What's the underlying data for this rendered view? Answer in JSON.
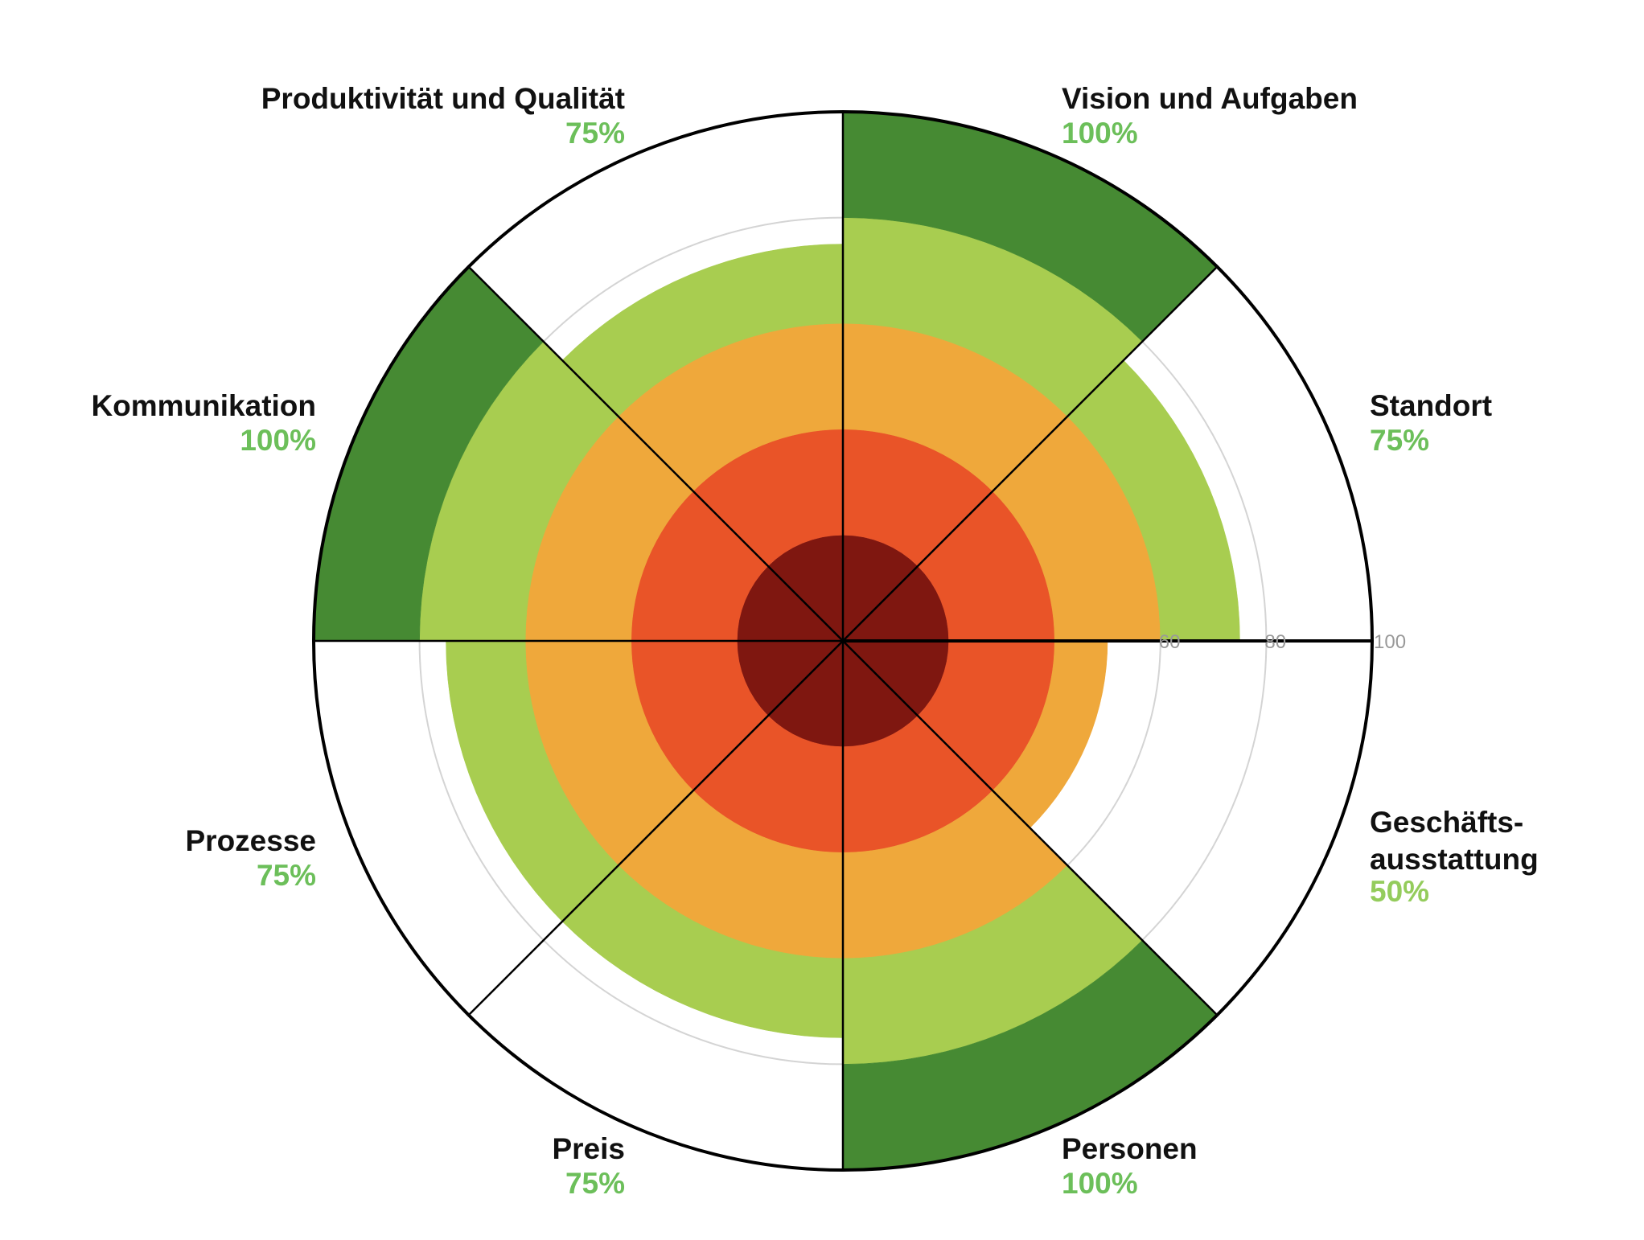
{
  "chart_data": {
    "type": "polar-area",
    "title": "",
    "categories": [
      "Vision und Aufgaben",
      "Standort",
      "Geschäftsausstattung",
      "Personen",
      "Preis",
      "Prozesse",
      "Kommunikation",
      "Produktivität und Qualität"
    ],
    "display_labels": [
      [
        "Vision und Aufgaben"
      ],
      [
        "Standort"
      ],
      [
        "Geschäfts-",
        "ausstattung"
      ],
      [
        "Personen"
      ],
      [
        "Preis"
      ],
      [
        "Prozesse"
      ],
      [
        "Kommunikation"
      ],
      [
        "Produktivität und Qualität"
      ]
    ],
    "values": [
      100,
      75,
      50,
      100,
      75,
      75,
      100,
      75
    ],
    "value_labels": [
      "100%",
      "75%",
      "50%",
      "100%",
      "75%",
      "75%",
      "100%",
      "75%"
    ],
    "rlim": [
      0,
      100
    ],
    "bands": [
      {
        "from": 0,
        "to": 20,
        "color": "#7f1710"
      },
      {
        "from": 20,
        "to": 40,
        "color": "#e95428"
      },
      {
        "from": 40,
        "to": 60,
        "color": "#efa83b"
      },
      {
        "from": 60,
        "to": 80,
        "color": "#a8cd50"
      },
      {
        "from": 80,
        "to": 100,
        "color": "#468a33"
      }
    ],
    "gridlines": [
      60,
      80,
      100
    ],
    "tick_labels": [
      "60",
      "80",
      "100"
    ],
    "label_colors": {
      "high": "#6cbf5a",
      "medium": "#94cc5c"
    }
  }
}
